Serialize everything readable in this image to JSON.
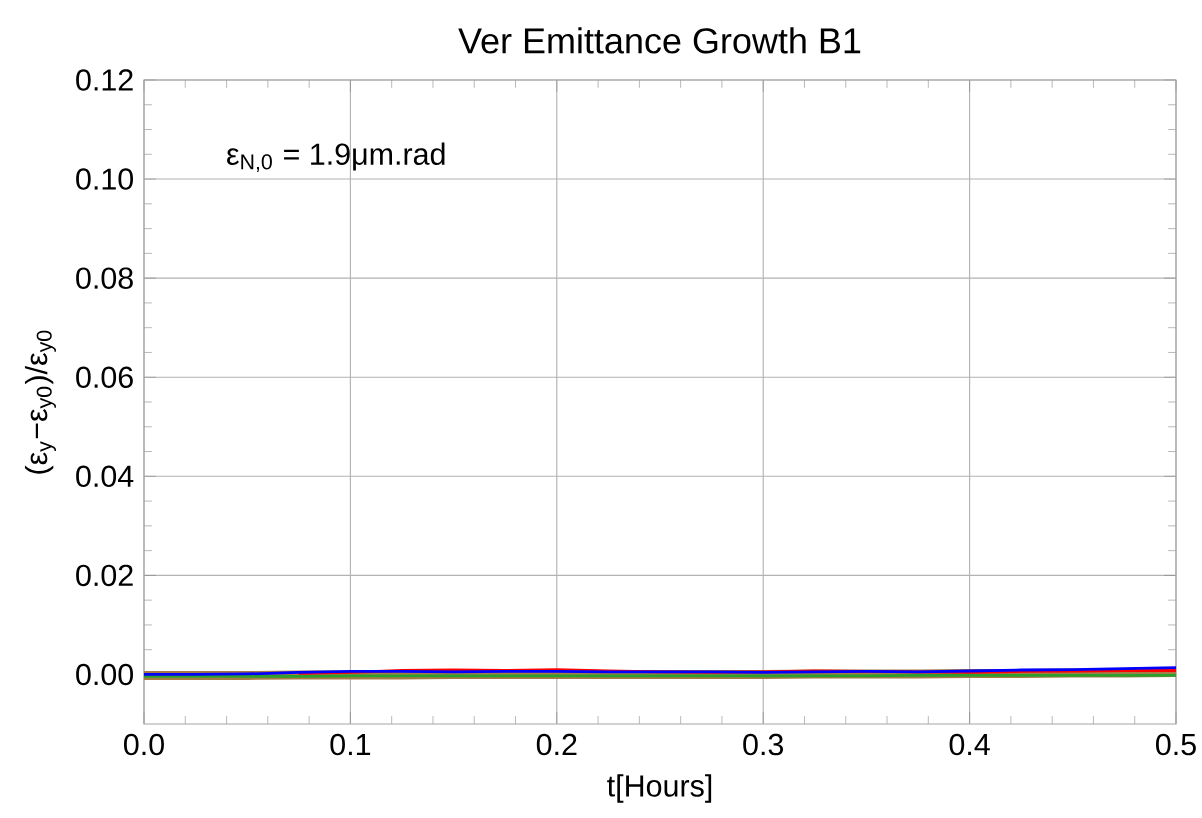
{
  "chart_data": {
    "type": "line",
    "title": "Ver Emittance Growth B1",
    "xlabel": "t[Hours]",
    "ylabel": "(ε$_{y}$−ε$_{y0}$)/ε$_{y0}$",
    "annotations": [
      "ε$_{N,0}$ = 1.9μm.rad"
    ],
    "x": [
      0,
      0.025,
      0.05,
      0.075,
      0.1,
      0.125,
      0.15,
      0.175,
      0.2,
      0.225,
      0.25,
      0.275,
      0.3,
      0.325,
      0.35,
      0.375,
      0.4,
      0.425,
      0.45,
      0.475,
      0.5
    ],
    "series": [
      {
        "color": "#0000ff",
        "values": [
          0,
          0,
          0.0001,
          0.0004,
          0.0006,
          0.0006,
          0.0005,
          0.0006,
          0.0006,
          0.0005,
          0.0005,
          0.0005,
          0.0004,
          0.0005,
          0.0006,
          0.0005,
          0.0007,
          0.0009,
          0.001,
          0.0012,
          0.0014
        ]
      },
      {
        "color": "#ff0000",
        "values": [
          null,
          null,
          null,
          0.0002,
          0.0004,
          0.0008,
          0.0009,
          0.0008,
          0.001,
          0.0007,
          0.0005,
          0.0004,
          0.0005,
          0.0007,
          0.0006,
          0.0005,
          0.0004,
          0.0006,
          0.0007,
          0.0008,
          0.0008
        ]
      },
      {
        "color": "#2ca02c",
        "values": [
          -0.0004,
          -0.0004,
          -0.0004,
          -0.0004,
          -0.0003,
          -0.0003,
          -0.0003,
          -0.0003,
          -0.0003,
          -0.0003,
          -0.0003,
          -0.0003,
          -0.0003,
          -0.0003,
          -0.0003,
          -0.0002,
          -0.0002,
          -0.0002,
          -0.0002,
          -0.0002,
          -0.0002
        ]
      },
      {
        "color": "#a67b45",
        "values": [
          -0.0002,
          -0.0002,
          -0.0002,
          -0.0001,
          -0.0001,
          -0.0001,
          0,
          0,
          0,
          0,
          0,
          0,
          0,
          0.0001,
          0.0001,
          0.0001,
          0.0002,
          0.0002,
          0.0003,
          0.0003,
          0.0004
        ]
      }
    ],
    "xlim": [
      0,
      0.5
    ],
    "ylim": [
      -0.01,
      0.12
    ],
    "xticks": [
      {
        "value": 0,
        "label": "0.0"
      },
      {
        "value": 0.1,
        "label": "0.1"
      },
      {
        "value": 0.2,
        "label": "0.2"
      },
      {
        "value": 0.3,
        "label": "0.3"
      },
      {
        "value": 0.4,
        "label": "0.4"
      },
      {
        "value": 0.5,
        "label": "0.5"
      }
    ],
    "yticks": [
      {
        "value": 0,
        "label": "0.00"
      },
      {
        "value": 0.02,
        "label": "0.02"
      },
      {
        "value": 0.04,
        "label": "0.04"
      },
      {
        "value": 0.06,
        "label": "0.06"
      },
      {
        "value": 0.08,
        "label": "0.08"
      },
      {
        "value": 0.1,
        "label": "0.10"
      },
      {
        "value": 0.12,
        "label": "0.12"
      }
    ],
    "grid": true,
    "marker": "none",
    "line_style": "solid"
  }
}
